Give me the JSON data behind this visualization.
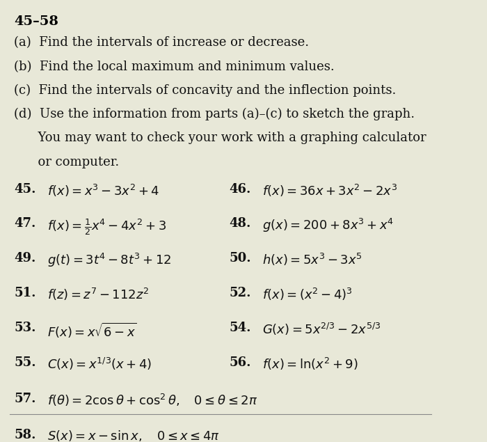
{
  "background_color": "#e8e8d8",
  "title": "45–58",
  "instructions": [
    "(a)  Find the intervals of increase or decrease.",
    "(b)  Find the local maximum and minimum values.",
    "(c)  Find the intervals of concavity and the inflection points.",
    "(d)  Use the information from parts (a)–(c) to sketch the graph.",
    "      You may want to check your work with a graphing calculator",
    "      or computer."
  ],
  "problems": [
    {
      "num": "45.",
      "text": "$f(x) = x^3 - 3x^2 + 4$"
    },
    {
      "num": "46.",
      "text": "$f(x) = 36x + 3x^2 - 2x^3$"
    },
    {
      "num": "47.",
      "text": "$f(x) = \\frac{1}{2}x^4 - 4x^2 + 3$"
    },
    {
      "num": "48.",
      "text": "$g(x) = 200 + 8x^3 + x^4$"
    },
    {
      "num": "49.",
      "text": "$g(t) = 3t^4 - 8t^3 + 12$"
    },
    {
      "num": "50.",
      "text": "$h(x) = 5x^3 - 3x^5$"
    },
    {
      "num": "51.",
      "text": "$f(z) = z^7 - 112z^2$"
    },
    {
      "num": "52.",
      "text": "$f(x) = (x^2 - 4)^3$"
    },
    {
      "num": "53.",
      "text": "$F(x) = x\\sqrt{6 - x}$"
    },
    {
      "num": "54.",
      "text": "$G(x) = 5x^{2/3} - 2x^{5/3}$"
    },
    {
      "num": "55.",
      "text": "$C(x) = x^{1/3}(x + 4)$"
    },
    {
      "num": "56.",
      "text": "$f(x) = \\ln(x^2 + 9)$"
    },
    {
      "num": "57.",
      "text": "$f(\\theta) = 2\\cos\\theta + \\cos^2\\theta, \\quad 0 \\leq \\theta \\leq 2\\pi$"
    },
    {
      "num": "58.",
      "text": "$S(x) = x - \\sin x, \\quad 0 \\leq x \\leq 4\\pi$"
    }
  ],
  "title_fontsize": 14,
  "instruction_fontsize": 13,
  "problem_fontsize": 13,
  "title_color": "#000000",
  "text_color": "#111111"
}
